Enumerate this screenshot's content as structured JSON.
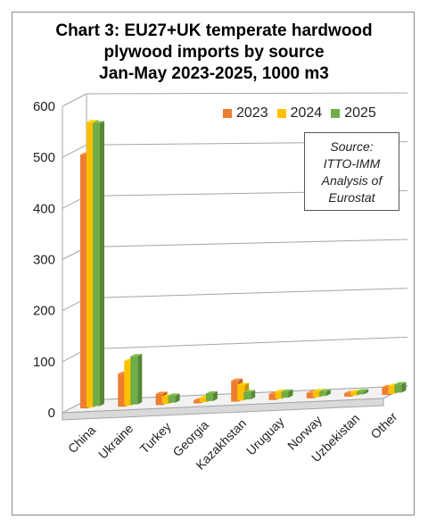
{
  "title_lines": [
    "Chart 3: EU27+UK temperate hardwood",
    "plywood imports by source",
    "Jan-May 2023-2025, 1000 m3"
  ],
  "source_lines": [
    "Source:",
    "ITTO-IMM",
    "Analysis of",
    "Eurostat"
  ],
  "colors": {
    "2023": "#ed7d31",
    "2024": "#ffc000",
    "2025": "#70ad47",
    "grid": "#a6a6a6",
    "frame": "#8c8c8c"
  },
  "chart_data": {
    "type": "bar",
    "title": "Chart 3: EU27+UK temperate hardwood plywood imports by source Jan-May 2023-2025, 1000 m3",
    "categories": [
      "China",
      "Ukraine",
      "Turkey",
      "Georgia",
      "Kazakhstan",
      "Uruguay",
      "Norway",
      "Uzbekistan",
      "Other"
    ],
    "series": [
      {
        "name": "2023",
        "values": [
          498,
          65,
          22,
          6,
          42,
          12,
          11,
          7,
          16
        ]
      },
      {
        "name": "2024",
        "values": [
          560,
          88,
          14,
          9,
          31,
          14,
          12,
          7,
          16
        ]
      },
      {
        "name": "2025",
        "values": [
          556,
          95,
          14,
          15,
          14,
          12,
          9,
          6,
          17
        ]
      }
    ],
    "yticks": [
      "0",
      "100",
      "200",
      "300",
      "400",
      "500",
      "600"
    ],
    "ylim": [
      0,
      600
    ],
    "legend": "top-right",
    "grid": true
  }
}
